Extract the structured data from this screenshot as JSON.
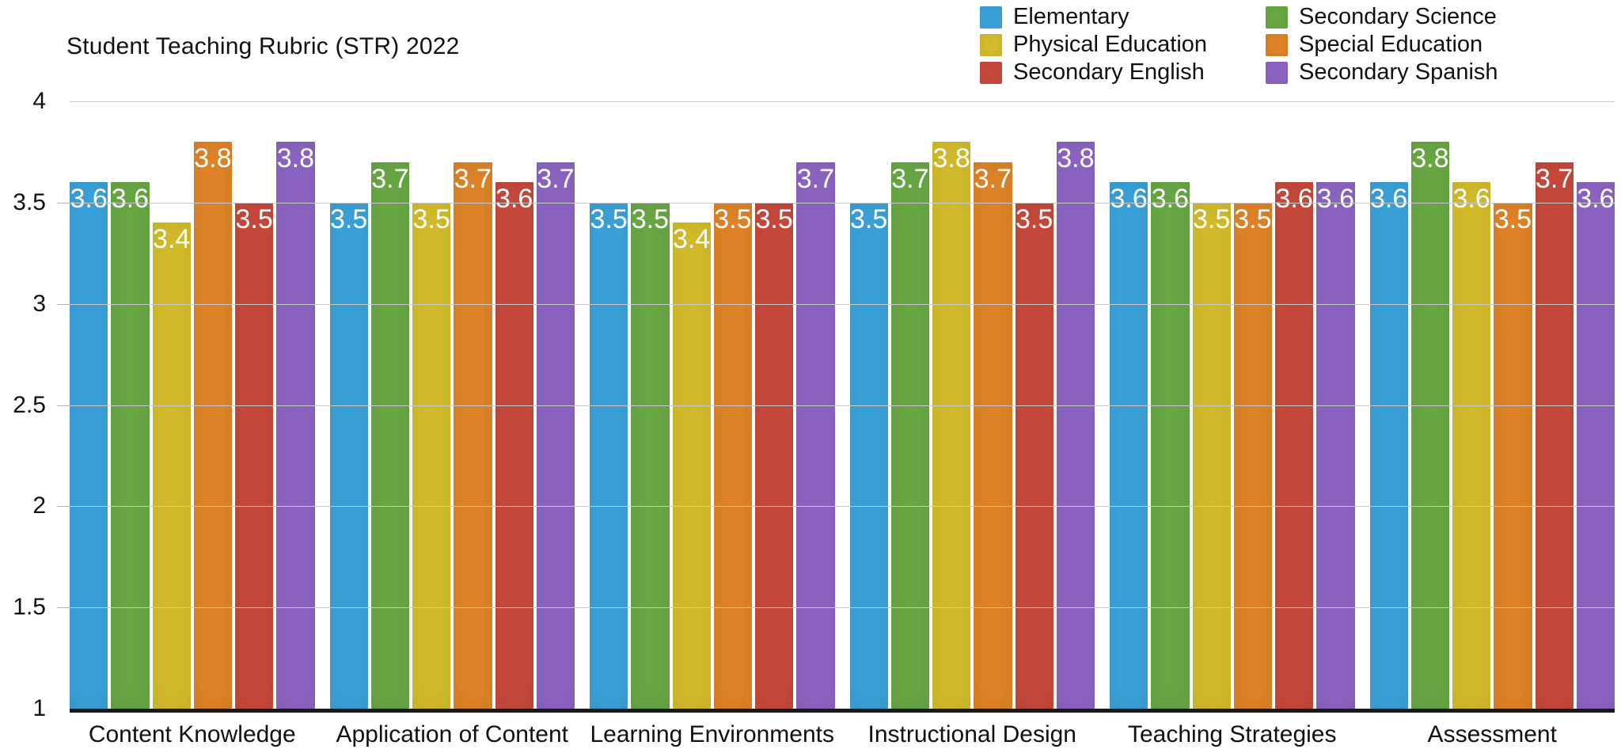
{
  "chart_data": {
    "type": "bar",
    "title": "Student Teaching Rubric (STR) 2022",
    "categories": [
      "Content Knowledge",
      "Application of Content",
      "Learning Environments",
      "Instructional Design",
      "Teaching Strategies",
      "Assessment"
    ],
    "series": [
      {
        "name": "Elementary",
        "color": "#3aa1d8",
        "values": [
          3.6,
          3.5,
          3.5,
          3.5,
          3.6,
          3.6
        ]
      },
      {
        "name": "Secondary Science",
        "color": "#68a744",
        "values": [
          3.6,
          3.7,
          3.5,
          3.7,
          3.6,
          3.8
        ]
      },
      {
        "name": "Physical Education",
        "color": "#d2bb2a",
        "values": [
          3.4,
          3.5,
          3.4,
          3.8,
          3.5,
          3.6
        ]
      },
      {
        "name": "Special Education",
        "color": "#de8327",
        "values": [
          3.8,
          3.7,
          3.5,
          3.7,
          3.5,
          3.5
        ]
      },
      {
        "name": "Secondary English",
        "color": "#c5493b",
        "values": [
          3.5,
          3.6,
          3.5,
          3.5,
          3.6,
          3.7
        ]
      },
      {
        "name": "Secondary Spanish",
        "color": "#8b64c1",
        "values": [
          3.8,
          3.7,
          3.7,
          3.8,
          3.6,
          3.6
        ]
      }
    ],
    "legend_columns": [
      [
        "Elementary",
        "Physical Education",
        "Secondary English"
      ],
      [
        "Secondary Science",
        "Special Education",
        "Secondary Spanish"
      ]
    ],
    "legend_position": "top-right",
    "value_labels": true,
    "grid": true,
    "xlabel": "",
    "ylabel": "",
    "ylim": [
      1,
      4
    ],
    "yticks": [
      4,
      3.5,
      3,
      2.5,
      2,
      1.5,
      1
    ],
    "colors": {
      "gridline": "#c9c9c9",
      "baseline": "#181818",
      "text": "#111111",
      "value_label": "#ffffff",
      "background": "#ffffff"
    }
  }
}
